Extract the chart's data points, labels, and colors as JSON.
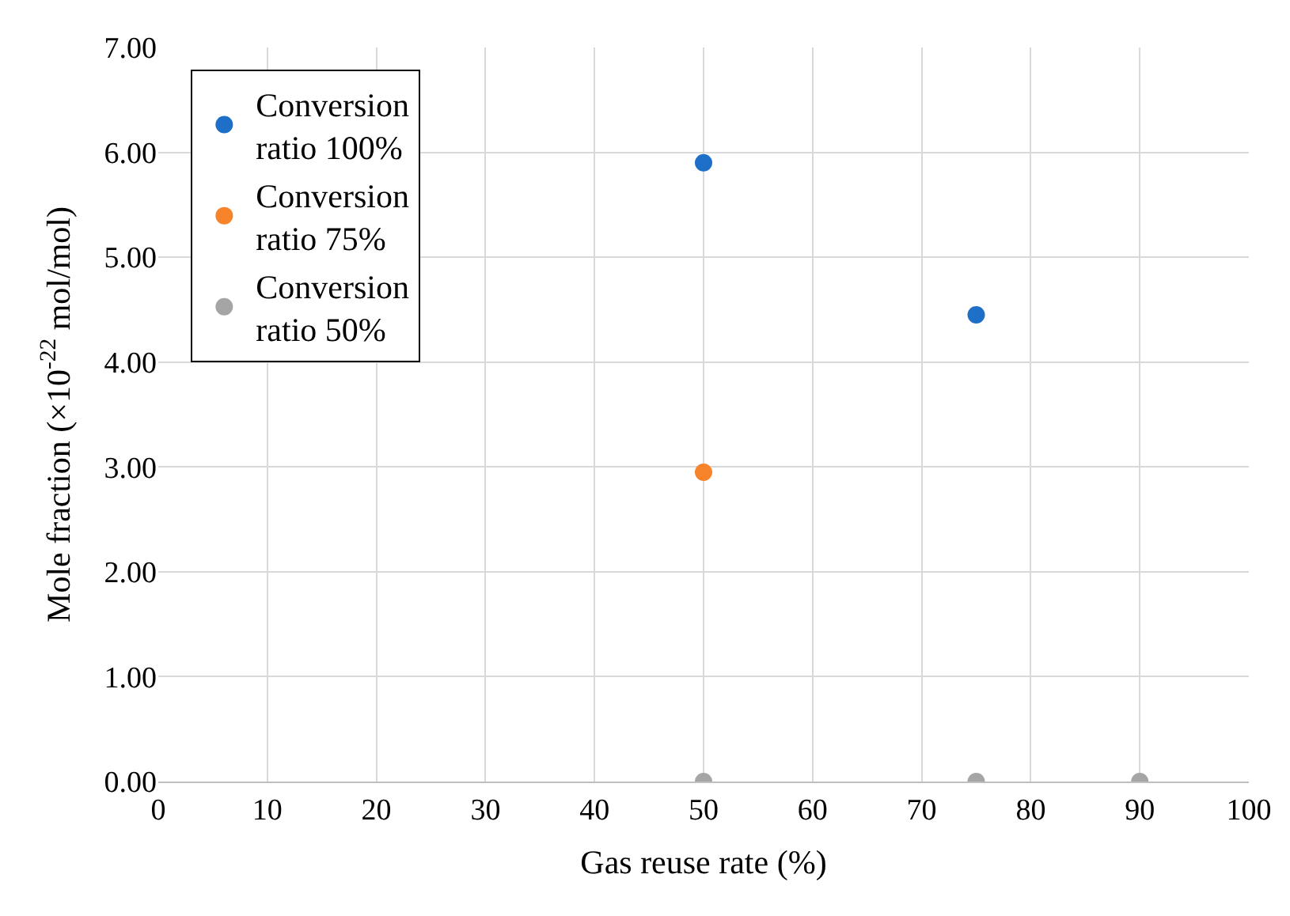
{
  "chart_data": {
    "type": "scatter",
    "xlabel": "Gas reuse rate (%)",
    "ylabel": "Mole fraction (×10$^{-22}$ mol/mol)",
    "series": [
      {
        "name": "Conversion ratio 100%",
        "color": "#1e6fc8",
        "x": [
          50,
          75
        ],
        "values": [
          5.9,
          4.45
        ]
      },
      {
        "name": "Conversion ratio 75%",
        "color": "#f7832a",
        "x": [
          50
        ],
        "values": [
          2.95
        ]
      },
      {
        "name": "Conversion ratio 50%",
        "color": "#a5a5a5",
        "x": [
          50,
          75,
          90
        ],
        "values": [
          0,
          0,
          0
        ]
      }
    ],
    "xlim": [
      0,
      100
    ],
    "xticks": [
      0,
      10,
      20,
      30,
      40,
      50,
      60,
      70,
      80,
      90,
      100
    ],
    "ylim": [
      0,
      7
    ],
    "yticks": [
      {
        "value": 0,
        "label": "0.00"
      },
      {
        "value": 1,
        "label": "1.00"
      },
      {
        "value": 2,
        "label": "2.00"
      },
      {
        "value": 3,
        "label": "3.00"
      },
      {
        "value": 4,
        "label": "4.00"
      },
      {
        "value": 5,
        "label": "5.00"
      },
      {
        "value": 6,
        "label": "6.00"
      },
      {
        "value": 7,
        "label": "7.00"
      }
    ],
    "grid": true,
    "legend": "top left",
    "marker": "circle"
  }
}
